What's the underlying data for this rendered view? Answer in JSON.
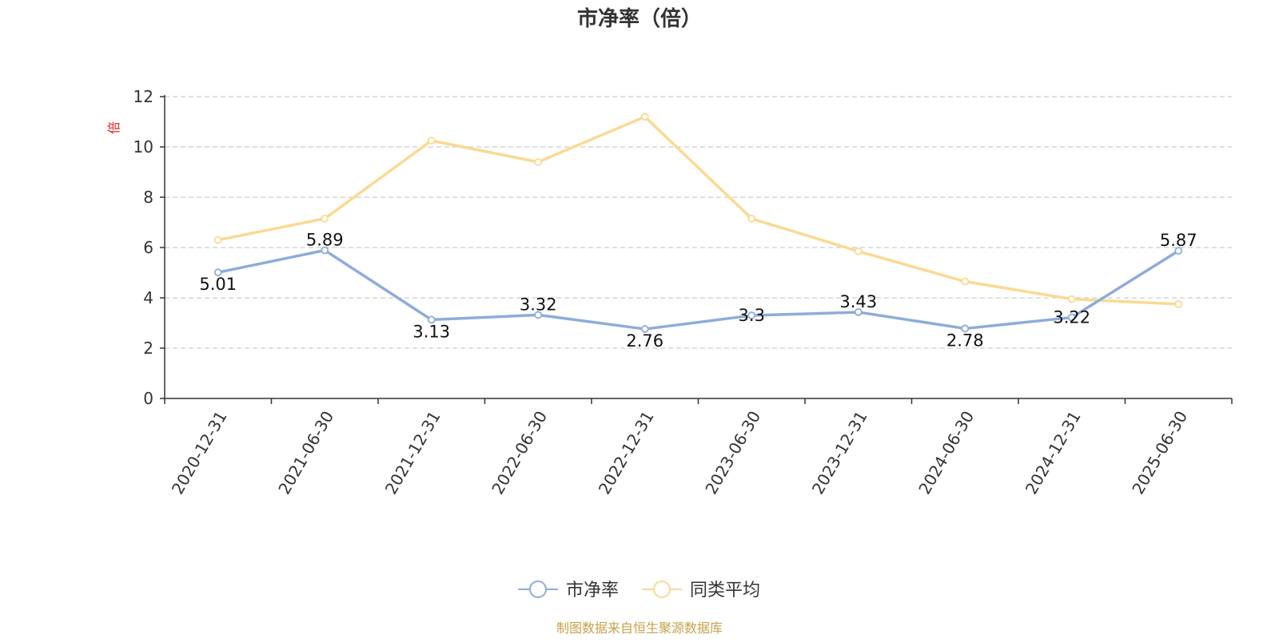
{
  "chart_data": {
    "type": "line",
    "title": "市净率（倍）",
    "ylabel": "倍",
    "xlabel": "",
    "categories": [
      "2020-12-31",
      "2021-06-30",
      "2021-12-31",
      "2022-06-30",
      "2022-12-31",
      "2023-06-30",
      "2023-12-31",
      "2024-06-30",
      "2024-12-31",
      "2025-06-30"
    ],
    "ylim": [
      0,
      12
    ],
    "yticks": [
      0,
      2,
      4,
      6,
      8,
      10,
      12
    ],
    "grid": true,
    "legend_position": "bottom",
    "series": [
      {
        "name": "市净率",
        "color": "#8eacd9",
        "values": [
          5.01,
          5.89,
          3.13,
          3.32,
          2.76,
          3.3,
          3.43,
          2.78,
          3.22,
          5.87
        ],
        "labels": [
          "5.01",
          "5.89",
          "3.13",
          "3.32",
          "2.76",
          "3.3",
          "3.43",
          "2.78",
          "3.22",
          "5.87"
        ]
      },
      {
        "name": "同类平均",
        "color": "#fbd992",
        "values": [
          6.3,
          7.15,
          10.25,
          9.4,
          11.2,
          7.15,
          5.85,
          4.65,
          3.95,
          3.75
        ]
      }
    ],
    "source": "制图数据来自恒生聚源数据库"
  },
  "colors": {
    "title": "#333333",
    "axis": "#333333",
    "grid": "#cccccc",
    "ylabel": "#e02020",
    "source": "#c8a04a"
  }
}
